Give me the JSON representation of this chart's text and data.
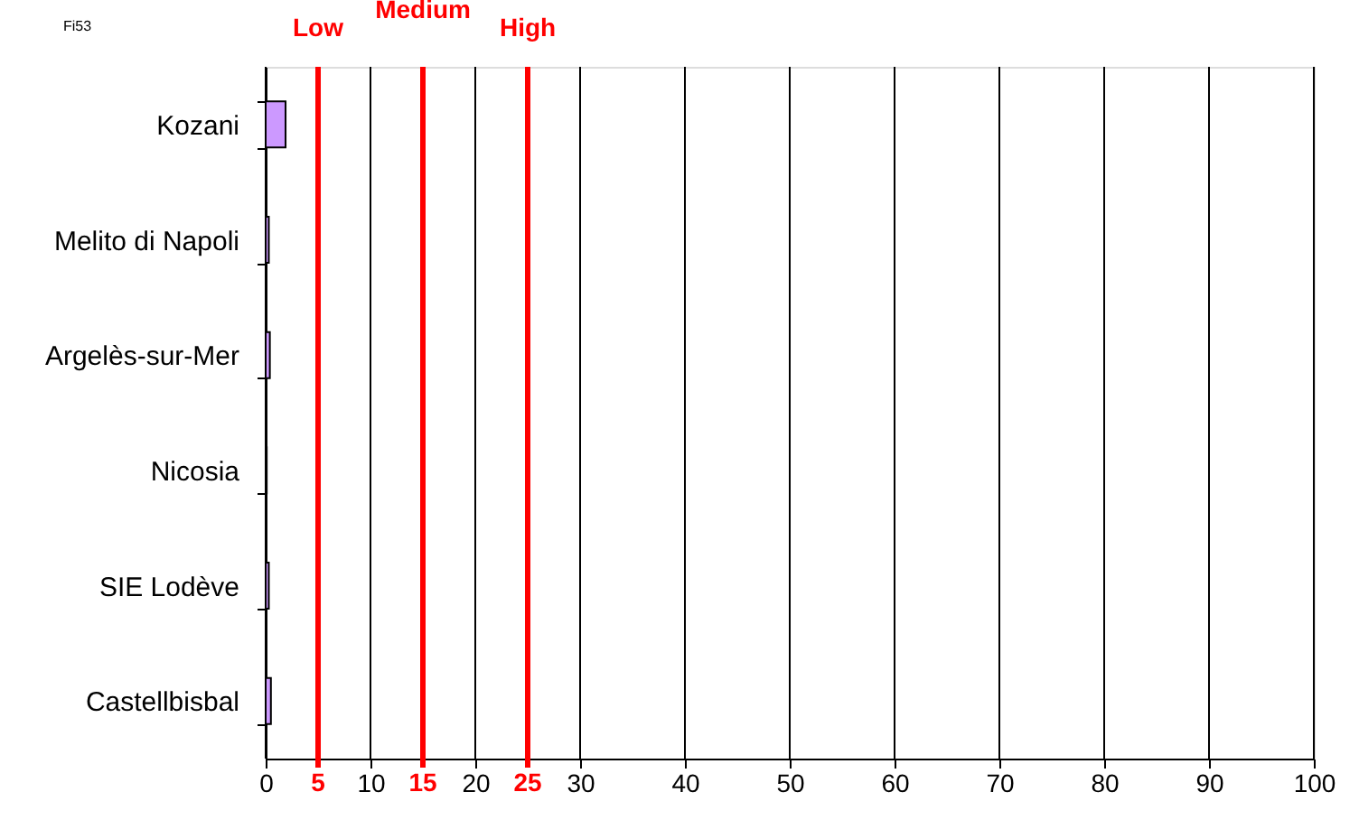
{
  "chart_data": {
    "type": "bar",
    "orientation": "horizontal",
    "categories": [
      "Kozani",
      "Melito di Napoli",
      "Argelès-sur-Mer",
      "Nicosia",
      "SIE Lodève",
      "Castellbisbal"
    ],
    "values": [
      1.9,
      0.3,
      0.4,
      0.1,
      0.3,
      0.5
    ],
    "color": "#cc99ff",
    "xlim": [
      0,
      100
    ],
    "xticks": [
      0,
      10,
      20,
      30,
      40,
      50,
      60,
      70,
      80,
      90,
      100
    ],
    "grid": "x",
    "ref_lines": [
      {
        "axis": "x",
        "value": 5,
        "label": "Low",
        "color": "#ff0000"
      },
      {
        "axis": "x",
        "value": 15,
        "label": "Medium",
        "color": "#ff0000"
      },
      {
        "axis": "x",
        "value": 25,
        "label": "High",
        "color": "#ff0000"
      }
    ],
    "annotations": [
      "Fi53",
      "5",
      "15",
      "25"
    ]
  }
}
